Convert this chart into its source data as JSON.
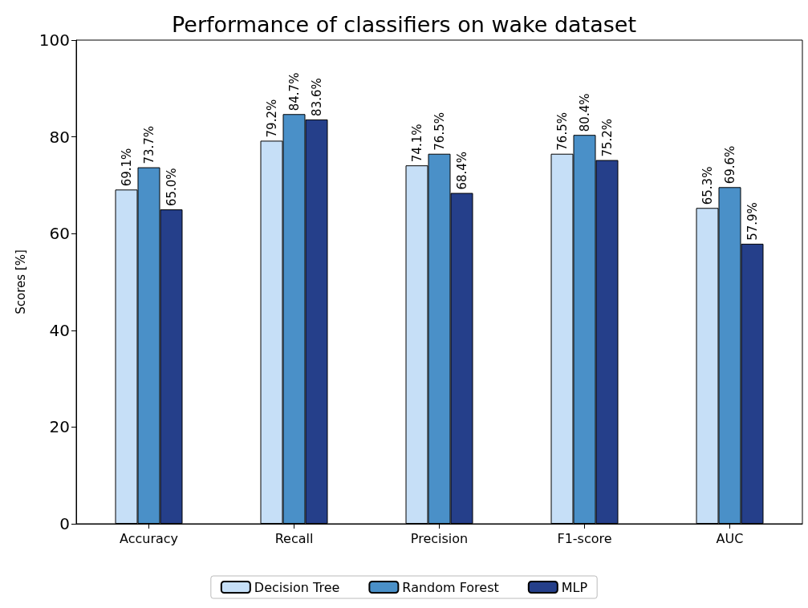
{
  "chart_data": {
    "type": "bar",
    "title": "Performance of classifiers on wake dataset",
    "ylabel": "Scores [%]",
    "categories": [
      "Accuracy",
      "Recall",
      "Precision",
      "F1-score",
      "AUC"
    ],
    "series": [
      {
        "name": "Decision Tree",
        "color": "#c6dff7",
        "values": [
          69.1,
          79.2,
          74.1,
          76.5,
          65.3
        ],
        "value_labels": [
          "69.1%",
          "79.2%",
          "74.1%",
          "76.5%",
          "65.3%"
        ]
      },
      {
        "name": "Random Forest",
        "color": "#4a90c8",
        "values": [
          73.7,
          84.7,
          76.5,
          80.4,
          69.6
        ],
        "value_labels": [
          "73.7%",
          "84.7%",
          "76.5%",
          "80.4%",
          "69.6%"
        ]
      },
      {
        "name": "MLP",
        "color": "#253f8a",
        "values": [
          65.0,
          83.6,
          68.4,
          75.2,
          57.9
        ],
        "value_labels": [
          "65.0%",
          "83.6%",
          "68.4%",
          "75.2%",
          "57.9%"
        ]
      }
    ],
    "ylim": [
      0,
      100
    ],
    "yticks": [
      0,
      20,
      40,
      60,
      80,
      100
    ],
    "grid": false,
    "legend": "bottom"
  }
}
